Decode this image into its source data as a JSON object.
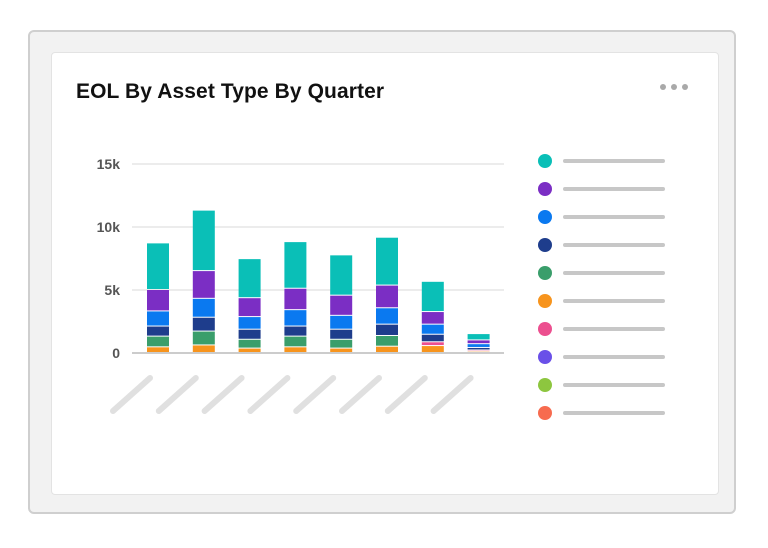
{
  "card": {
    "title": "EOL By Asset Type By Quarter"
  },
  "menu": {
    "icon": "more-horizontal-icon"
  },
  "colors": {
    "teal": "#0ABFB7",
    "purple": "#7B2EC4",
    "blue": "#0A79F0",
    "navy": "#1E3D8C",
    "green": "#3A9E6B",
    "orange": "#F7941D",
    "pink": "#EC4F8F",
    "violet": "#6A50E8",
    "lime": "#8DC63F",
    "coral": "#F76B4F",
    "gridline": "#d9d9d9",
    "placeholder": "#e0e0e0"
  },
  "chart_data": {
    "type": "bar",
    "stacked": true,
    "title": "EOL By Asset Type By Quarter",
    "categories": [
      "",
      "",
      "",
      "",
      "",
      "",
      "",
      ""
    ],
    "ylim": [
      0,
      15000
    ],
    "yticks": [
      {
        "value": 0,
        "label": "0"
      },
      {
        "value": 5000,
        "label": "5k"
      },
      {
        "value": 10000,
        "label": "10k"
      },
      {
        "value": 15000,
        "label": "15k"
      }
    ],
    "grid": true,
    "legend_position": "right",
    "series": [
      {
        "color": "#F7941D",
        "values": [
          450,
          600,
          350,
          450,
          350,
          500,
          550,
          100
        ]
      },
      {
        "color": "#EC4F8F",
        "values": [
          0,
          0,
          0,
          0,
          0,
          0,
          300,
          100
        ]
      },
      {
        "color": "#3A9E6B",
        "values": [
          850,
          1100,
          700,
          850,
          700,
          850,
          0,
          0
        ]
      },
      {
        "color": "#1E3D8C",
        "values": [
          800,
          1100,
          800,
          800,
          800,
          900,
          600,
          200
        ]
      },
      {
        "color": "#0A79F0",
        "values": [
          1200,
          1500,
          1000,
          1300,
          1100,
          1300,
          800,
          300
        ]
      },
      {
        "color": "#7B2EC4",
        "values": [
          1700,
          2200,
          1500,
          1700,
          1600,
          1800,
          1000,
          300
        ]
      },
      {
        "color": "#0ABFB7",
        "values": [
          3700,
          4800,
          3100,
          3700,
          3200,
          3800,
          2400,
          500
        ]
      }
    ],
    "legend": [
      {
        "color": "#0ABFB7"
      },
      {
        "color": "#7B2EC4"
      },
      {
        "color": "#0A79F0"
      },
      {
        "color": "#1E3D8C"
      },
      {
        "color": "#3A9E6B"
      },
      {
        "color": "#F7941D"
      },
      {
        "color": "#EC4F8F"
      },
      {
        "color": "#6A50E8"
      },
      {
        "color": "#8DC63F"
      },
      {
        "color": "#F76B4F"
      }
    ]
  }
}
